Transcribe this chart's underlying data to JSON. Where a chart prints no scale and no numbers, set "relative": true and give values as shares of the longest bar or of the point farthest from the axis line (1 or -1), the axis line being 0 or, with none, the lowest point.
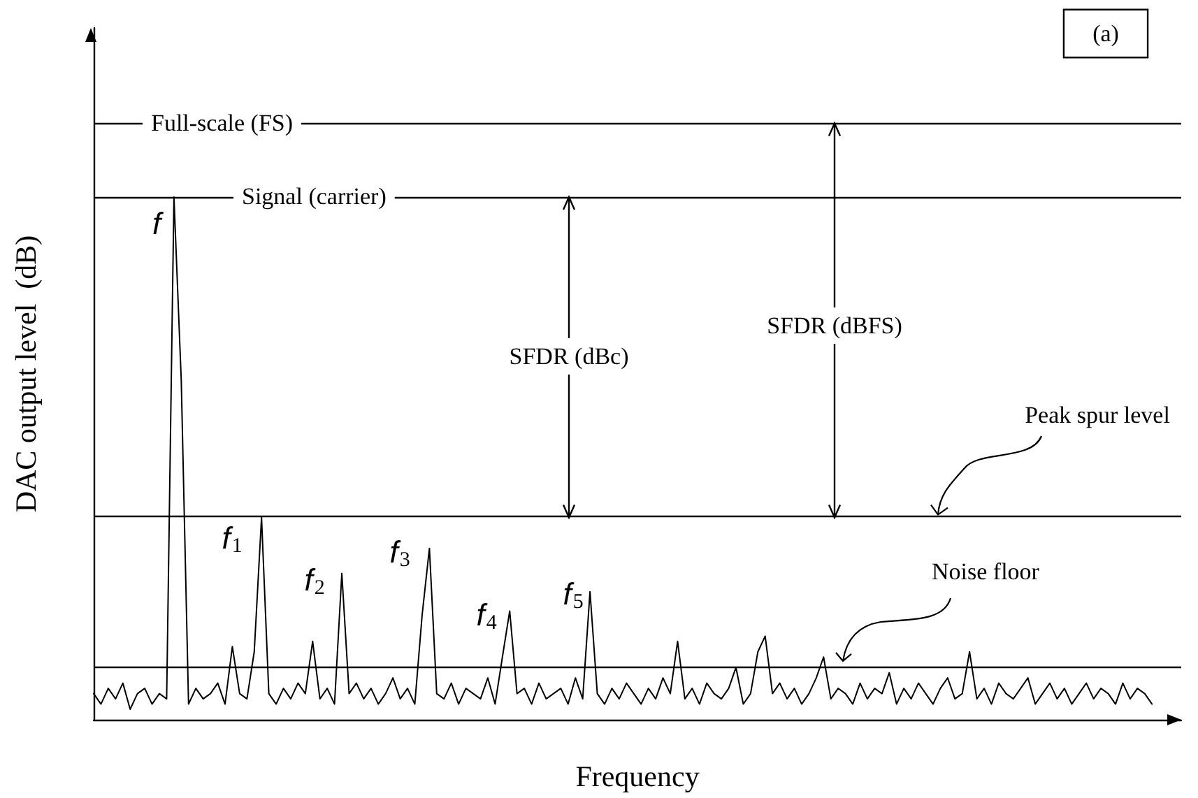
{
  "chart_data": {
    "type": "line",
    "relative": true,
    "xlabel": "Frequency",
    "ylabel": "DAC output level  (dB)",
    "categories": [
      null,
      null,
      null,
      null,
      null,
      null,
      null,
      null,
      null,
      null,
      null,
      null,
      null,
      null,
      null,
      null,
      null,
      null,
      null,
      null,
      null,
      null,
      null,
      null,
      null,
      null,
      null,
      null,
      null,
      null,
      null,
      null,
      null,
      null,
      null,
      null,
      null,
      null,
      null,
      null,
      null,
      null,
      null,
      null,
      null,
      null,
      null,
      null,
      null,
      null,
      null,
      null,
      null,
      null,
      null,
      null,
      null,
      null,
      null,
      null,
      null,
      null,
      null,
      null,
      null,
      null,
      null,
      null,
      null,
      null,
      null,
      null,
      null,
      null,
      null,
      null,
      null,
      null,
      null,
      null,
      null,
      null,
      null,
      null,
      null,
      null,
      null,
      null,
      null,
      null,
      null,
      null,
      null,
      null,
      null,
      null,
      null,
      null,
      null,
      null,
      null,
      null,
      null,
      null,
      null,
      null,
      null,
      null,
      null,
      null,
      null,
      null,
      null,
      null,
      null,
      null,
      null,
      null,
      null,
      null,
      null,
      null,
      null,
      null,
      null,
      null,
      null,
      null,
      null,
      null,
      null,
      null,
      null,
      null,
      null,
      null,
      null,
      null,
      null,
      null,
      null,
      null,
      null,
      null,
      null,
      null,
      null,
      null,
      null,
      null
    ],
    "series": [
      {
        "color": "#000000",
        "values": [
          0.05,
          0.03,
          0.06,
          0.04,
          0.07,
          0.02,
          0.05,
          0.06,
          0.03,
          0.05,
          0.04,
          1.0,
          0.65,
          0.03,
          0.06,
          0.04,
          0.05,
          0.07,
          0.03,
          0.14,
          0.05,
          0.04,
          0.13,
          0.387,
          0.05,
          0.03,
          0.06,
          0.04,
          0.07,
          0.05,
          0.15,
          0.04,
          0.06,
          0.03,
          0.28,
          0.05,
          0.07,
          0.04,
          0.06,
          0.03,
          0.05,
          0.08,
          0.04,
          0.06,
          0.03,
          0.2,
          0.328,
          0.05,
          0.04,
          0.07,
          0.03,
          0.06,
          0.05,
          0.04,
          0.08,
          0.03,
          0.12,
          0.208,
          0.05,
          0.06,
          0.03,
          0.07,
          0.04,
          0.05,
          0.06,
          0.03,
          0.08,
          0.04,
          0.245,
          0.05,
          0.03,
          0.06,
          0.04,
          0.07,
          0.05,
          0.03,
          0.06,
          0.04,
          0.08,
          0.05,
          0.15,
          0.04,
          0.06,
          0.03,
          0.07,
          0.05,
          0.04,
          0.06,
          0.1,
          0.03,
          0.05,
          0.13,
          0.16,
          0.05,
          0.07,
          0.04,
          0.06,
          0.03,
          0.05,
          0.08,
          0.12,
          0.04,
          0.06,
          0.05,
          0.03,
          0.07,
          0.04,
          0.06,
          0.05,
          0.09,
          0.03,
          0.06,
          0.04,
          0.07,
          0.05,
          0.03,
          0.06,
          0.08,
          0.04,
          0.05,
          0.13,
          0.04,
          0.06,
          0.03,
          0.07,
          0.05,
          0.04,
          0.06,
          0.08,
          0.03,
          0.05,
          0.07,
          0.04,
          0.06,
          0.03,
          0.05,
          0.07,
          0.04,
          0.06,
          0.05,
          0.03,
          0.07,
          0.04,
          0.06,
          0.05,
          0.03,
          null,
          null,
          null,
          null
        ]
      }
    ],
    "ref_lines": [
      {
        "axis": "y",
        "value": 1.141,
        "label": "Full-scale (FS)"
      },
      {
        "axis": "y",
        "value": 1.0,
        "label": "Signal (carrier)"
      },
      {
        "axis": "y",
        "value": 0.387
      },
      {
        "axis": "y",
        "value": 0.099
      }
    ],
    "annotations": [
      "f",
      "f$_{1}$",
      "f$_{2}$",
      "f$_{3}$",
      "f$_{4}$",
      "f$_{5}$",
      "SFDR (dBc)",
      "SFDR (dBFS)",
      "Peak spur level",
      "Noise floor",
      "(a)"
    ],
    "grid": false,
    "marker": "none",
    "line_style": "solid"
  }
}
